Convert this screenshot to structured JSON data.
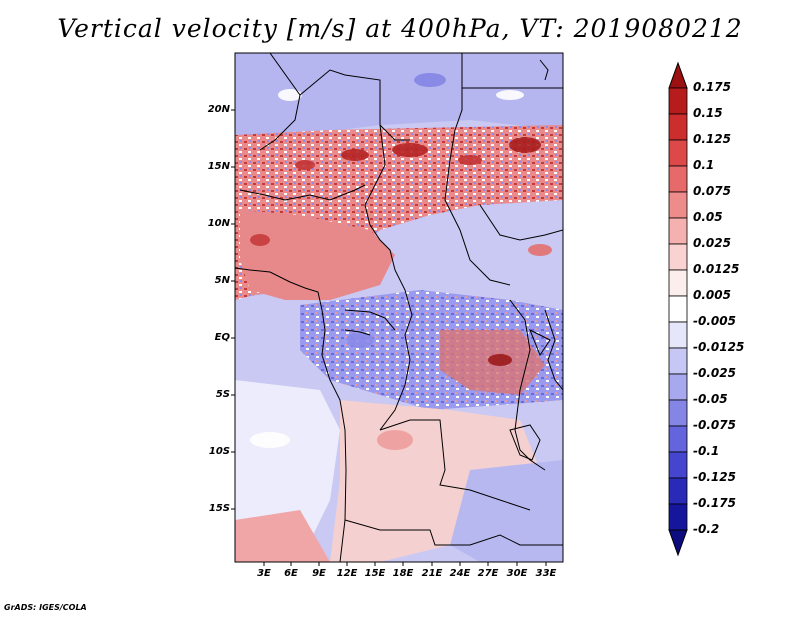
{
  "title": "Vertical velocity [m/s] at 400hPa, VT: 2019080212",
  "credit": "GrADS: IGES/COLA",
  "latitude_labels": [
    "20N",
    "15N",
    "10N",
    "5N",
    "EQ",
    "5S",
    "10S",
    "15S"
  ],
  "longitude_labels": [
    "3E",
    "6E",
    "9E",
    "12E",
    "15E",
    "18E",
    "21E",
    "24E",
    "27E",
    "30E",
    "33E"
  ],
  "colorbar": {
    "levels": [
      "0.175",
      "0.15",
      "0.125",
      "0.1",
      "0.075",
      "0.05",
      "0.025",
      "0.0125",
      "0.005",
      "-0.005",
      "-0.0125",
      "-0.025",
      "-0.05",
      "-0.075",
      "-0.1",
      "-0.125",
      "-0.175",
      "-0.2"
    ],
    "colors": [
      "#9b1010",
      "#b61c1c",
      "#cc2e2e",
      "#dd4848",
      "#e66a6a",
      "#ee8c8c",
      "#f5b0b0",
      "#fbd2d2",
      "#fdeeee",
      "#ffffff",
      "#e6e6fb",
      "#c7c7f5",
      "#a8a8ef",
      "#8585e6",
      "#6464dc",
      "#4545cf",
      "#2a2ab8",
      "#16169c",
      "#0c0c7e"
    ]
  },
  "map_regions": [
    {
      "name": "sahel-updraft",
      "tone": "#e26d6d"
    },
    {
      "name": "congo-downdraft",
      "tone": "#7c7cea"
    },
    {
      "name": "southern-mixed",
      "tone": "#f2c2c2"
    }
  ]
}
